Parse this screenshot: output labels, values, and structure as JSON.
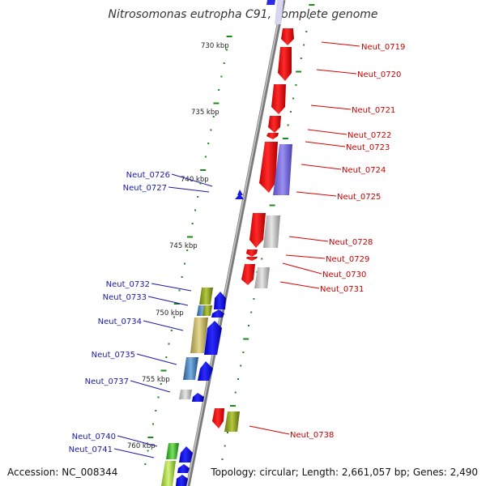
{
  "title": "Nitrosomonas eutropha C91, complete genome",
  "footer": {
    "accession": "Accession: NC_008344",
    "summary": "Topology: circular; Length: 2,661,057 bp; Genes: 2,490"
  },
  "ticks": [
    {
      "label": "730 kbp"
    },
    {
      "label": "735 kbp"
    },
    {
      "label": "740 kbp"
    },
    {
      "label": "745 kbp"
    },
    {
      "label": "750 kbp"
    },
    {
      "label": "755 kbp"
    },
    {
      "label": "760 kbp"
    }
  ],
  "genes_right": [
    {
      "label": "Neut_0719"
    },
    {
      "label": "Neut_0720"
    },
    {
      "label": "Neut_0721"
    },
    {
      "label": "Neut_0722"
    },
    {
      "label": "Neut_0723"
    },
    {
      "label": "Neut_0724"
    },
    {
      "label": "Neut_0725"
    },
    {
      "label": "Neut_0728"
    },
    {
      "label": "Neut_0729"
    },
    {
      "label": "Neut_0730"
    },
    {
      "label": "Neut_0731"
    },
    {
      "label": "Neut_0738"
    }
  ],
  "genes_left": [
    {
      "label": "Neut_0726"
    },
    {
      "label": "Neut_0727"
    },
    {
      "label": "Neut_0732"
    },
    {
      "label": "Neut_0733"
    },
    {
      "label": "Neut_0734"
    },
    {
      "label": "Neut_0735"
    },
    {
      "label": "Neut_0737"
    },
    {
      "label": "Neut_0740"
    },
    {
      "label": "Neut_0741"
    }
  ],
  "colors": {
    "forward_strand": "#ee0000",
    "reverse_strand": "#0000ee",
    "backbone": "#9a9a9a",
    "tick": "#1a8a1a"
  }
}
